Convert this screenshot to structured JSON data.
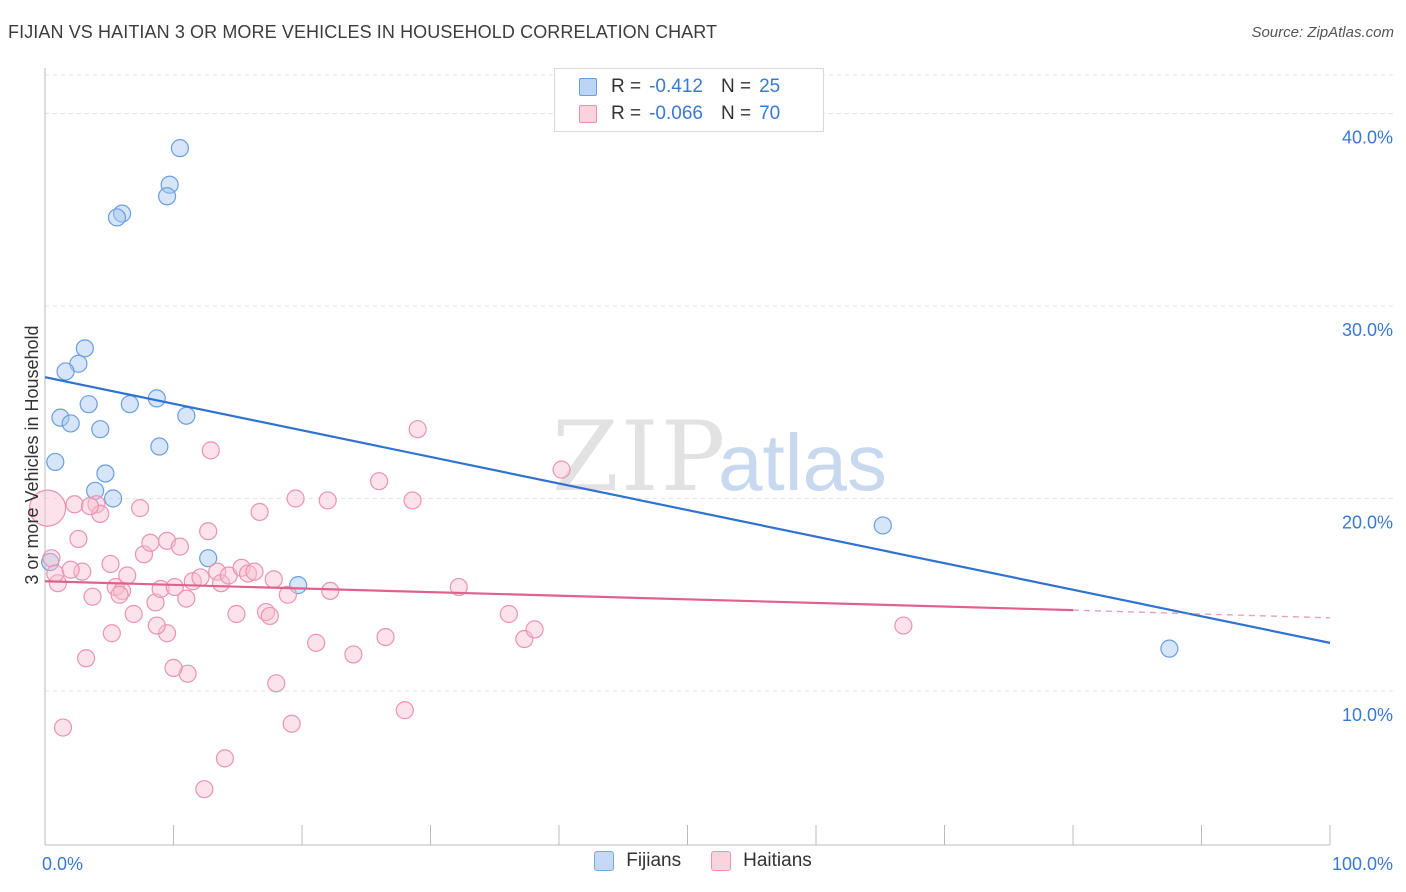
{
  "title": "FIJIAN VS HAITIAN 3 OR MORE VEHICLES IN HOUSEHOLD CORRELATION CHART",
  "source": "Source: ZipAtlas.com",
  "watermark": {
    "zip": "ZIP",
    "atlas": "atlas"
  },
  "legend": {
    "rows": [
      {
        "r_label": "R =",
        "r_value": "-0.412",
        "n_label": "N =",
        "n_value": "25",
        "color": "#a8c8f0",
        "border": "#6a9fe0"
      },
      {
        "r_label": "R =",
        "r_value": "-0.066",
        "n_label": "N =",
        "n_value": "70",
        "color": "#f8c0d0",
        "border": "#e890ac"
      }
    ]
  },
  "bottom_legend": {
    "fijians": {
      "label": "Fijians",
      "color": "#c3d9f5",
      "border": "#7aa6e0"
    },
    "haitians": {
      "label": "Haitians",
      "color": "#fbd3df",
      "border": "#eb94af"
    }
  },
  "chart_data": {
    "type": "scatter",
    "title": "FIJIAN VS HAITIAN 3 OR MORE VEHICLES IN HOUSEHOLD CORRELATION CHART",
    "xlabel": "",
    "ylabel": "3 or more Vehicles in Household",
    "xlim": [
      0,
      100
    ],
    "ylim": [
      2,
      42
    ],
    "x_tick_labels": [
      {
        "value": 0,
        "label": "0.0%"
      },
      {
        "value": 100,
        "label": "100.0%"
      }
    ],
    "y_ticks": [
      {
        "value": 10,
        "label": "10.0%"
      },
      {
        "value": 20,
        "label": "20.0%"
      },
      {
        "value": 30,
        "label": "30.0%"
      },
      {
        "value": 40,
        "label": "40.0%"
      }
    ],
    "series": [
      {
        "name": "Fijians",
        "color": "#6a9fe0",
        "fill": "rgba(165,198,240,0.45)",
        "trend": {
          "x0": 0,
          "y0": 26.3,
          "x1": 100,
          "y1": 12.5,
          "color": "#2f73d0"
        },
        "points": [
          [
            10.5,
            38.2
          ],
          [
            9.7,
            36.3
          ],
          [
            9.5,
            35.7
          ],
          [
            6.0,
            34.8
          ],
          [
            5.6,
            34.6
          ],
          [
            3.1,
            27.8
          ],
          [
            2.6,
            27.0
          ],
          [
            1.6,
            26.6
          ],
          [
            8.7,
            25.2
          ],
          [
            3.4,
            24.9
          ],
          [
            6.6,
            24.9
          ],
          [
            11.0,
            24.3
          ],
          [
            1.2,
            24.2
          ],
          [
            2.0,
            23.9
          ],
          [
            4.3,
            23.6
          ],
          [
            8.9,
            22.7
          ],
          [
            0.8,
            21.9
          ],
          [
            4.7,
            21.3
          ],
          [
            3.9,
            20.4
          ],
          [
            5.3,
            20.0
          ],
          [
            12.7,
            16.9
          ],
          [
            19.7,
            15.5
          ],
          [
            0.4,
            16.7
          ],
          [
            65.2,
            18.6
          ],
          [
            87.5,
            12.2
          ]
        ]
      },
      {
        "name": "Haitians",
        "color": "#eb94af",
        "fill": "rgba(248,190,208,0.45)",
        "trend": {
          "x0": 0,
          "y0": 15.7,
          "x1": 80,
          "y1": 14.2,
          "color": "#e06090",
          "dash_to_x": 100,
          "dash_to_y": 13.8
        },
        "points": [
          [
            0.2,
            19.5
          ],
          [
            0.5,
            16.9
          ],
          [
            1.0,
            15.6
          ],
          [
            0.8,
            16.1
          ],
          [
            2.3,
            19.7
          ],
          [
            2.6,
            17.9
          ],
          [
            2.9,
            16.2
          ],
          [
            4.0,
            19.7
          ],
          [
            4.3,
            19.2
          ],
          [
            3.5,
            19.6
          ],
          [
            5.1,
            16.6
          ],
          [
            5.5,
            15.4
          ],
          [
            6.0,
            15.2
          ],
          [
            6.4,
            16.0
          ],
          [
            5.8,
            15.0
          ],
          [
            7.4,
            19.5
          ],
          [
            7.7,
            17.1
          ],
          [
            8.2,
            17.7
          ],
          [
            8.6,
            14.6
          ],
          [
            9.0,
            15.3
          ],
          [
            9.5,
            17.8
          ],
          [
            10.1,
            15.4
          ],
          [
            10.5,
            17.5
          ],
          [
            11.0,
            14.8
          ],
          [
            11.5,
            15.7
          ],
          [
            12.1,
            15.9
          ],
          [
            12.7,
            18.3
          ],
          [
            12.9,
            22.5
          ],
          [
            13.4,
            16.2
          ],
          [
            13.7,
            15.6
          ],
          [
            14.3,
            16.0
          ],
          [
            14.9,
            14.0
          ],
          [
            15.3,
            16.4
          ],
          [
            15.8,
            16.1
          ],
          [
            16.3,
            16.2
          ],
          [
            16.7,
            19.3
          ],
          [
            17.2,
            14.1
          ],
          [
            17.5,
            13.9
          ],
          [
            17.8,
            15.8
          ],
          [
            18.9,
            15.0
          ],
          [
            19.5,
            20.0
          ],
          [
            22.0,
            19.9
          ],
          [
            22.2,
            15.2
          ],
          [
            24.0,
            11.9
          ],
          [
            21.1,
            12.5
          ],
          [
            18.0,
            10.4
          ],
          [
            19.2,
            8.3
          ],
          [
            14.0,
            6.5
          ],
          [
            12.4,
            4.9
          ],
          [
            11.1,
            10.9
          ],
          [
            9.5,
            13.0
          ],
          [
            8.7,
            13.4
          ],
          [
            6.9,
            14.0
          ],
          [
            5.2,
            13.0
          ],
          [
            3.2,
            11.7
          ],
          [
            1.4,
            8.1
          ],
          [
            26.0,
            20.9
          ],
          [
            26.5,
            12.8
          ],
          [
            28.6,
            19.9
          ],
          [
            29.0,
            23.6
          ],
          [
            28.0,
            9.0
          ],
          [
            32.2,
            15.4
          ],
          [
            36.1,
            14.0
          ],
          [
            37.3,
            12.7
          ],
          [
            38.1,
            13.2
          ],
          [
            40.2,
            21.5
          ],
          [
            66.8,
            13.4
          ],
          [
            3.7,
            14.9
          ],
          [
            2.0,
            16.3
          ],
          [
            10.0,
            11.2
          ]
        ]
      }
    ],
    "big_points": [
      [
        0.2,
        19.5
      ]
    ]
  }
}
